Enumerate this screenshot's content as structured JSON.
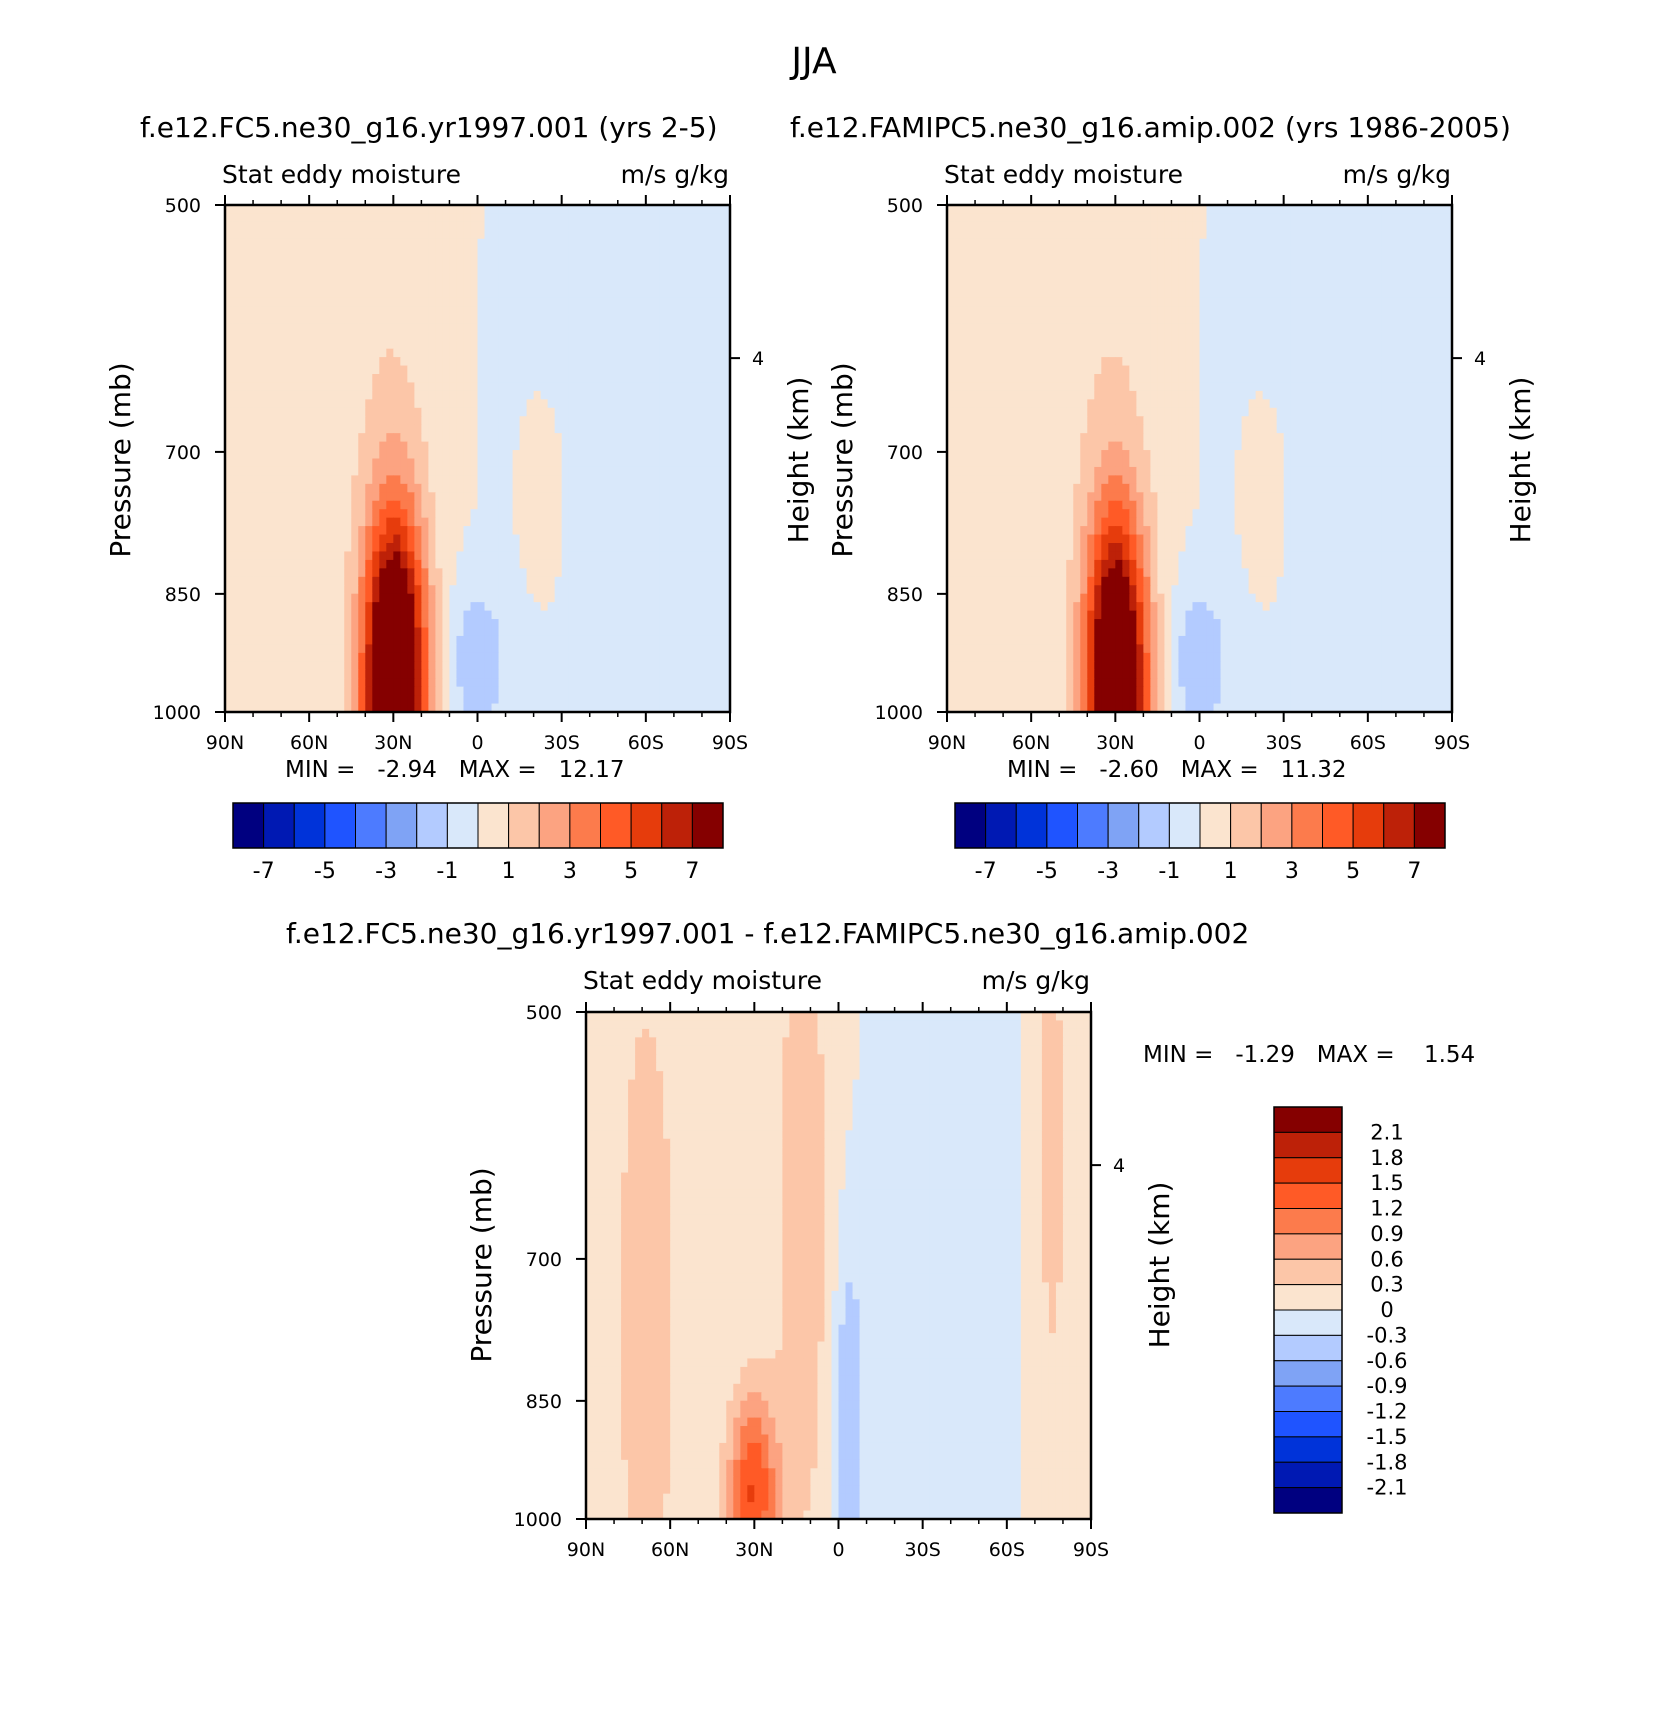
{
  "figure": {
    "title": "JJA"
  },
  "palette_full": [
    "#000080",
    "#0019b3",
    "#0033d9",
    "#1f54ff",
    "#4d7bff",
    "#7fa3f5",
    "#b3cbff",
    "#d9e8fa",
    "#fbe4cf",
    "#fcc6a8",
    "#fca381",
    "#fc7b4c",
    "#ff5a26",
    "#e63c0c",
    "#bd2108",
    "#850000"
  ],
  "chart_data": [
    {
      "type": "heatmap",
      "title": "f.e12.FC5.ne30_g16.yr1997.001 (yrs 2-5)",
      "left_label": "Stat eddy moisture",
      "right_label": "m/s g/kg",
      "ylabel": "Pressure (mb)",
      "y2label": "Height (km)",
      "y_ticks": [
        "500",
        "700",
        "850",
        "1000"
      ],
      "y2_ticks": [
        "4"
      ],
      "x_ticks": [
        "90N",
        "60N",
        "30N",
        "0",
        "30S",
        "60S",
        "90S"
      ],
      "min_max": "MIN =   -2.94   MAX =   12.17",
      "min": -2.94,
      "max": 12.17,
      "colorbar_labels": [
        "-7",
        "-5",
        "-3",
        "-1",
        "1",
        "3",
        "5",
        "7"
      ]
    },
    {
      "type": "heatmap",
      "title": "f.e12.FAMIPC5.ne30_g16.amip.002 (yrs 1986-2005)",
      "left_label": "Stat eddy moisture",
      "right_label": "m/s g/kg",
      "ylabel": "Pressure (mb)",
      "y2label": "Height (km)",
      "y_ticks": [
        "500",
        "700",
        "850",
        "1000"
      ],
      "y2_ticks": [
        "4"
      ],
      "x_ticks": [
        "90N",
        "60N",
        "30N",
        "0",
        "30S",
        "60S",
        "90S"
      ],
      "min_max": "MIN =   -2.60   MAX =   11.32",
      "min": -2.6,
      "max": 11.32,
      "colorbar_labels": [
        "-7",
        "-5",
        "-3",
        "-1",
        "1",
        "3",
        "5",
        "7"
      ]
    },
    {
      "type": "heatmap",
      "title": "f.e12.FC5.ne30_g16.yr1997.001 - f.e12.FAMIPC5.ne30_g16.amip.002",
      "left_label": "Stat eddy moisture",
      "right_label": "m/s g/kg",
      "ylabel": "Pressure (mb)",
      "y2label": "Height (km)",
      "y_ticks": [
        "500",
        "700",
        "850",
        "1000"
      ],
      "y2_ticks": [
        "4"
      ],
      "x_ticks": [
        "90N",
        "60N",
        "30N",
        "0",
        "30S",
        "60S",
        "90S"
      ],
      "min_max": "MIN =   -1.29   MAX =    1.54",
      "min": -1.29,
      "max": 1.54,
      "colorbar_labels": [
        "2.1",
        "1.8",
        "1.5",
        "1.2",
        "0.9",
        "0.6",
        "0.3",
        "0",
        "-0.3",
        "-0.6",
        "-0.9",
        "-1.2",
        "-1.5",
        "-1.8",
        "-2.1"
      ]
    }
  ]
}
